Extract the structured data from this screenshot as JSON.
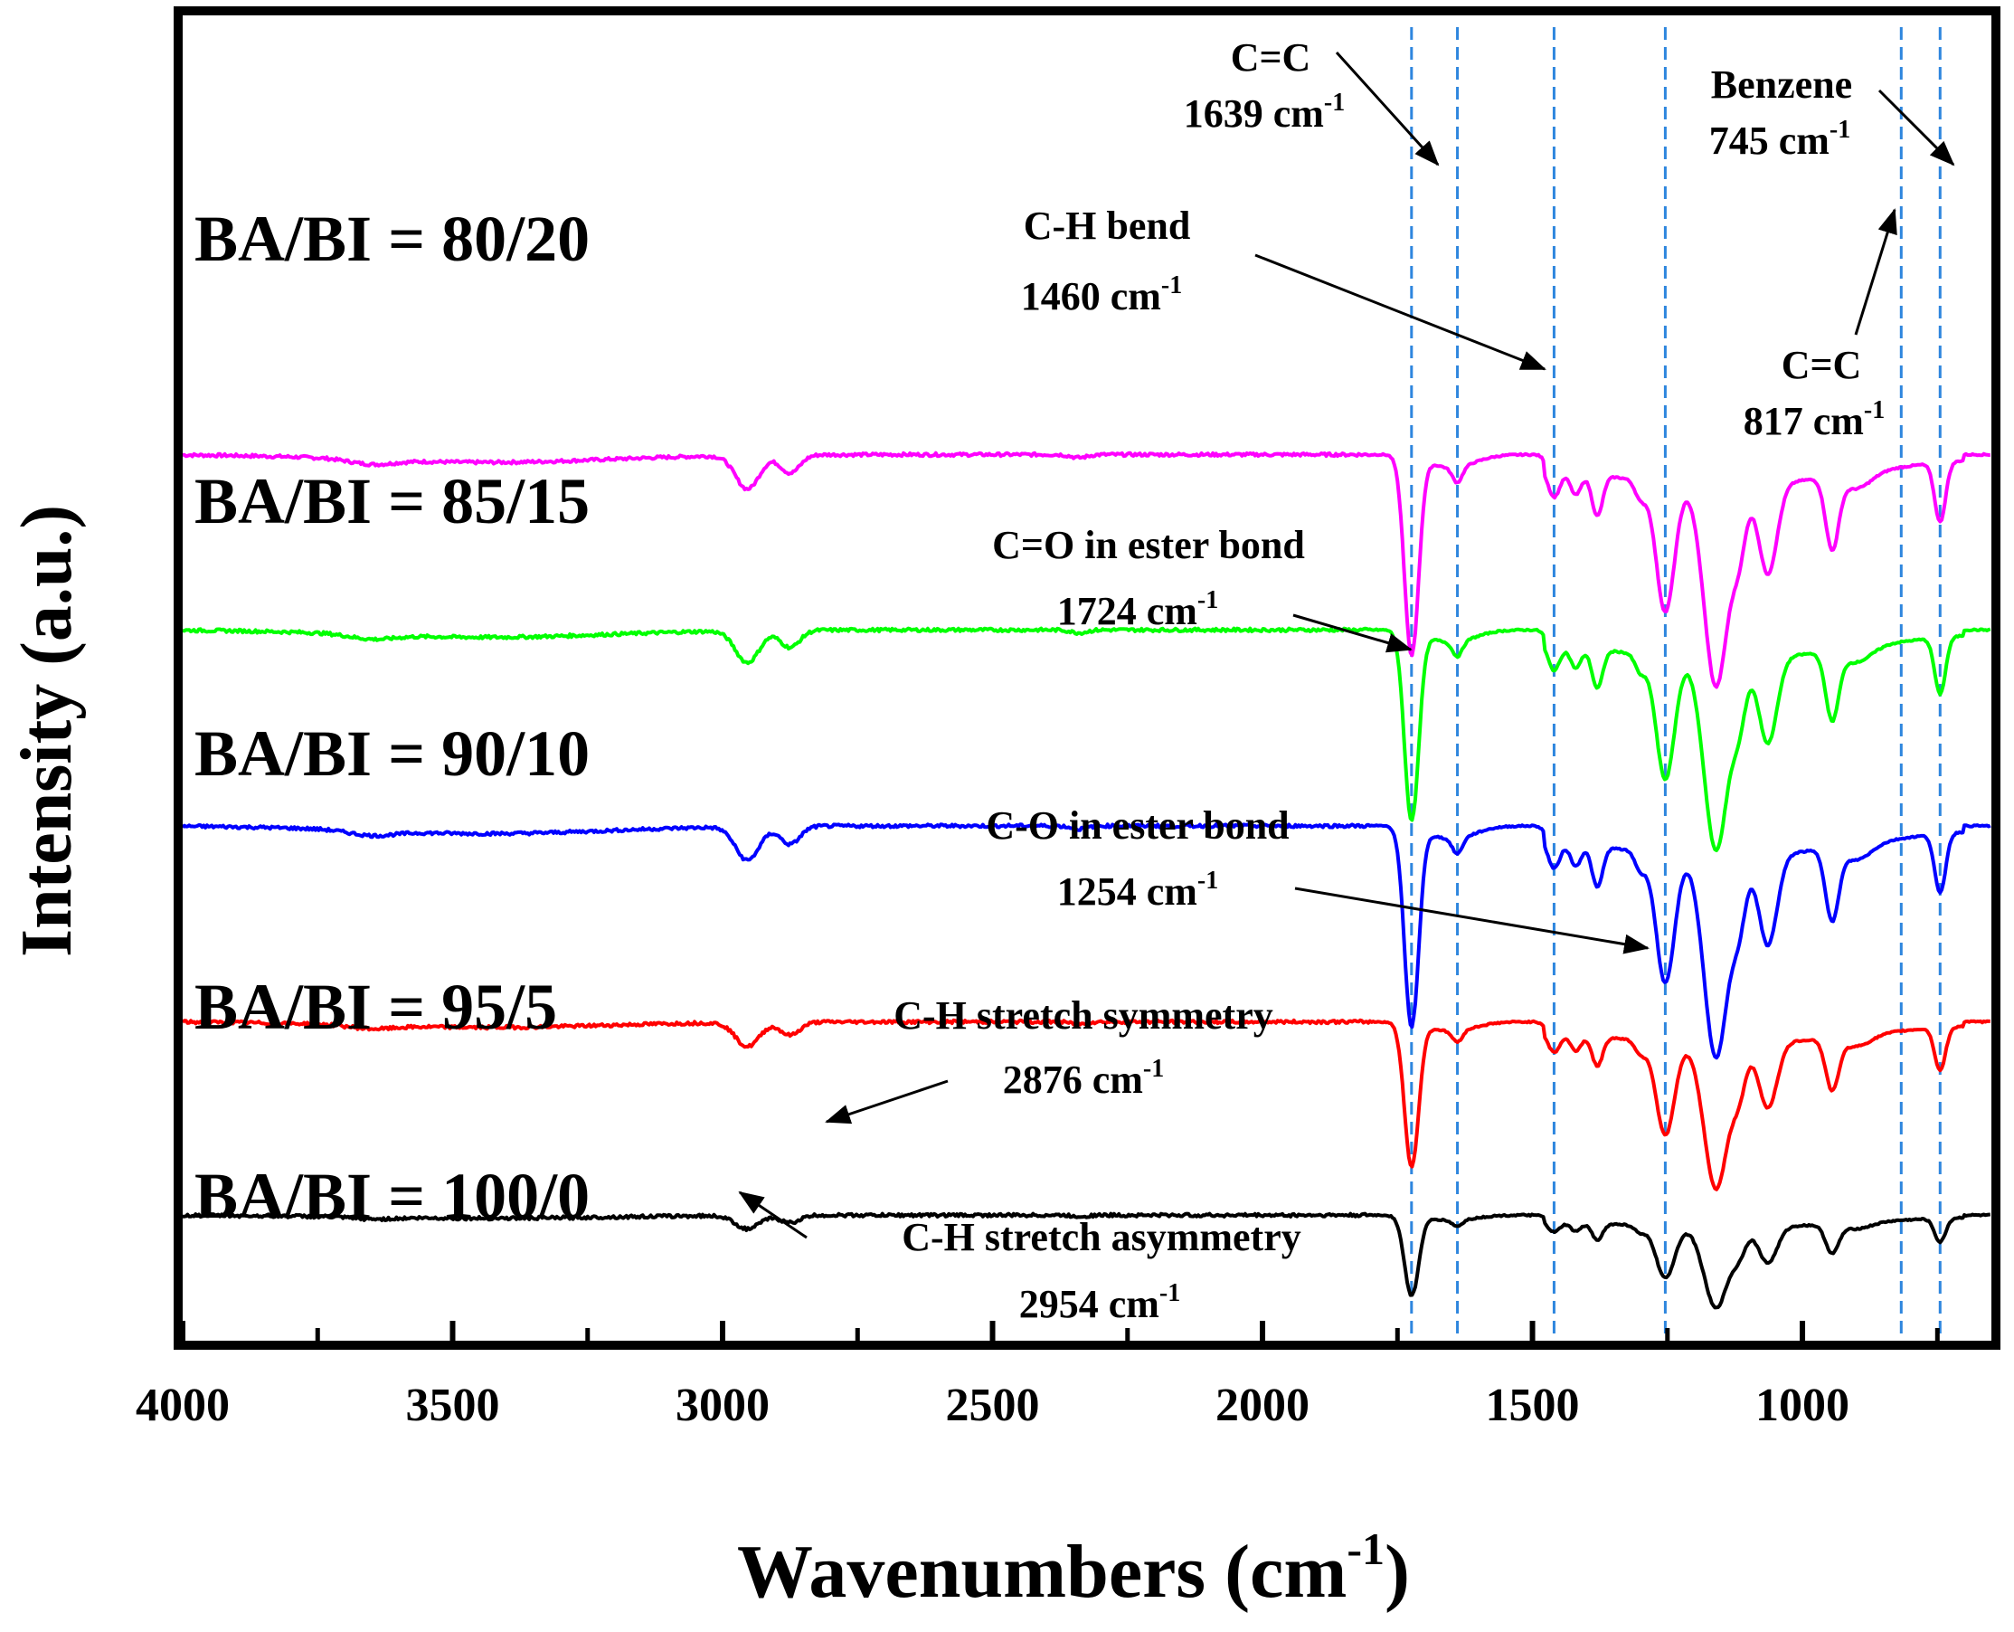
{
  "chart_data": {
    "type": "line",
    "xlabel": "Wavenumbers (cm",
    "xlabel_sup": "-1",
    "xlabel_end": ")",
    "ylabel": "Intensity (a.u.)",
    "xlim": [
      4000,
      650
    ],
    "x_reversed": true,
    "xticks": [
      4000,
      3500,
      3000,
      2500,
      2000,
      1500,
      1000
    ],
    "yticks_shown": false,
    "reference_lines": [
      1724,
      1639,
      1460,
      1254,
      817,
      745
    ],
    "series": [
      {
        "name": "BA/BI = 80/20",
        "color": "#ff00ff",
        "baseline": 3.5,
        "depth": 1.0
      },
      {
        "name": "BA/BI = 85/15",
        "color": "#00ff00",
        "baseline": 2.82,
        "depth": 0.95
      },
      {
        "name": "BA/BI = 90/10",
        "color": "#0000ff",
        "baseline": 2.06,
        "depth": 1.0
      },
      {
        "name": "BA/BI = 95/5",
        "color": "#ff0000",
        "baseline": 1.3,
        "depth": 0.72
      },
      {
        "name": "BA/BI = 100/0",
        "color": "#000000",
        "baseline": 0.55,
        "depth": 0.4
      }
    ],
    "bands": [
      {
        "x": 2954,
        "label": "C-H stretch asymmetry",
        "value": "2954 cm",
        "sup": "-1"
      },
      {
        "x": 2876,
        "label": "C-H stretch symmetry",
        "value": "2876 cm",
        "sup": "-1"
      },
      {
        "x": 1724,
        "label": "C=O in ester bond",
        "value": "1724 cm",
        "sup": "-1"
      },
      {
        "x": 1639,
        "label": "C=C",
        "value": "1639 cm",
        "sup": "-1"
      },
      {
        "x": 1460,
        "label": "C-H bend",
        "value": "1460 cm",
        "sup": "-1"
      },
      {
        "x": 1254,
        "label": "C-O in ester bond",
        "value": "1254 cm",
        "sup": "-1"
      },
      {
        "x": 817,
        "label": "C=C",
        "value": "817 cm",
        "sup": "-1"
      },
      {
        "x": 745,
        "label": "Benzene",
        "value": "745 cm",
        "sup": "-1"
      }
    ]
  }
}
